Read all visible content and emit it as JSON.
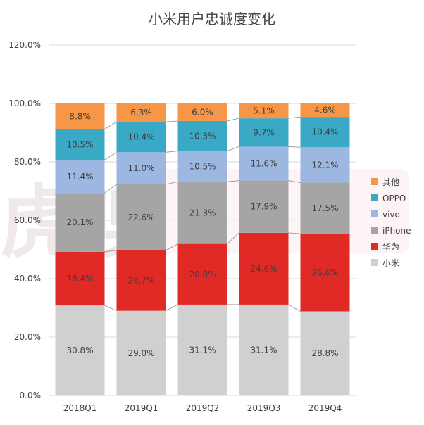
{
  "chart_data": {
    "type": "bar",
    "stacked": true,
    "title": "小米用户忠诚度变化",
    "xlabel": "",
    "ylabel": "",
    "categories": [
      "2018Q1",
      "2019Q1",
      "2019Q2",
      "2019Q3",
      "2019Q4"
    ],
    "ylim": [
      0,
      120
    ],
    "yticks": [
      "0.0%",
      "20.0%",
      "40.0%",
      "60.0%",
      "80.0%",
      "100.0%",
      "120.0%"
    ],
    "grid": true,
    "legend": "right",
    "series": [
      {
        "name": "小米",
        "color": "#d0d0d0",
        "values": [
          30.8,
          29.0,
          31.1,
          31.1,
          28.8
        ],
        "labels": [
          "30.8%",
          "29.0%",
          "31.1%",
          "31.1%",
          "28.8%"
        ]
      },
      {
        "name": "华为",
        "color": "#e12a26",
        "values": [
          18.4,
          20.7,
          20.8,
          24.6,
          26.6
        ],
        "labels": [
          "18.4%",
          "20.7%",
          "20.8%",
          "24.6%",
          "26.6%"
        ]
      },
      {
        "name": "iPhone",
        "color": "#a5a5a5",
        "values": [
          20.1,
          22.6,
          21.3,
          17.9,
          17.5
        ],
        "labels": [
          "20.1%",
          "22.6%",
          "21.3%",
          "17.9%",
          "17.5%"
        ]
      },
      {
        "name": "vivo",
        "color": "#9cb8e0",
        "values": [
          11.4,
          11.0,
          10.5,
          11.6,
          12.1
        ],
        "labels": [
          "11.4%",
          "11.0%",
          "10.5%",
          "11.6%",
          "12.1%"
        ]
      },
      {
        "name": "OPPO",
        "color": "#3aa9c6",
        "values": [
          10.5,
          10.4,
          10.3,
          9.7,
          10.4
        ],
        "labels": [
          "10.5%",
          "10.4%",
          "10.3%",
          "9.7%",
          "10.4%"
        ]
      },
      {
        "name": "其他",
        "color": "#f79646",
        "values": [
          8.8,
          6.3,
          6.0,
          5.1,
          4.6
        ],
        "labels": [
          "8.8%",
          "6.3%",
          "6.0%",
          "5.1%",
          "4.6%"
        ]
      }
    ]
  },
  "watermark": "虎嗅"
}
